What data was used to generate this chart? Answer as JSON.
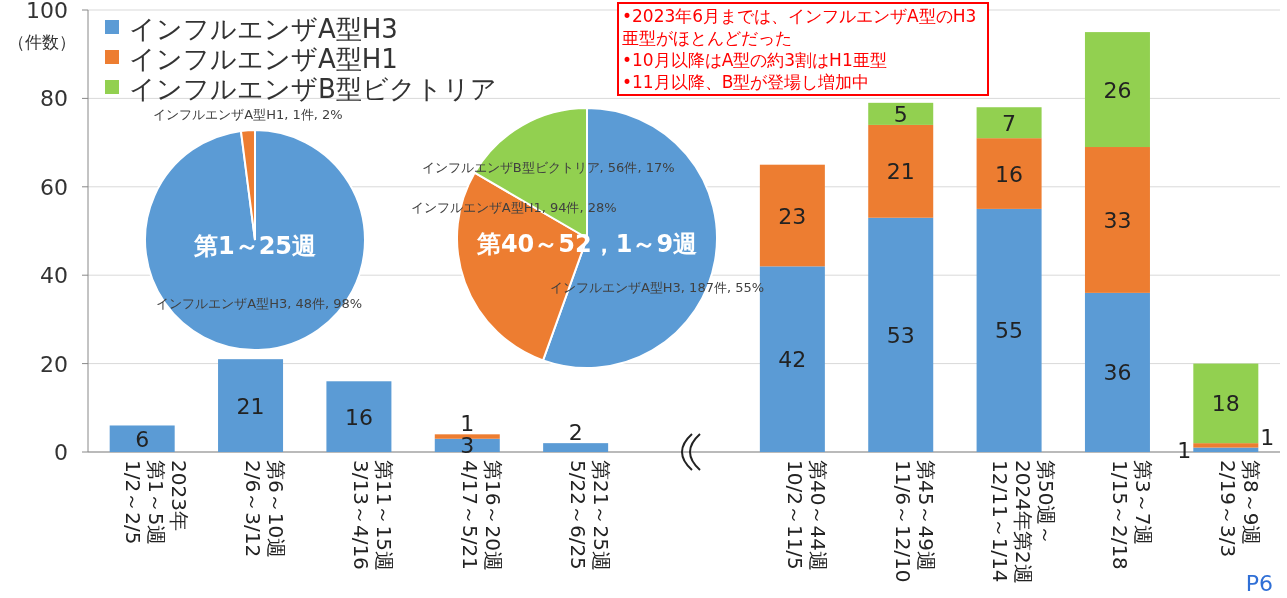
{
  "chart_data": [
    {
      "type": "bar",
      "stacked": true,
      "ylabel": "（件数）",
      "ylim": [
        0,
        100
      ],
      "yticks": [
        0,
        20,
        40,
        60,
        80,
        100
      ],
      "grid": "y",
      "legend": "top left",
      "data_labels": true,
      "categories": [
        "第1～5週\n1/2～2/5",
        "第6～10週\n2/6～3/12",
        "第11～15週\n3/13～4/16",
        "第16～20週\n4/17～5/21",
        "第21～25週\n5/22～6/25",
        null,
        "第40～44週\n10/2～11/5",
        "第45～49週\n11/6～12/10",
        "第50週～\n2024年第2週\n12/11～1/14",
        "第3～7週\n1/15～2/18",
        "第8～9週\n2/19～3/3"
      ],
      "series": [
        {
          "name": "インフルエンザA型H3",
          "color": "#5b9bd5",
          "values": [
            6,
            21,
            16,
            3,
            2,
            null,
            42,
            53,
            55,
            36,
            1
          ]
        },
        {
          "name": "インフルエンザA型H1",
          "color": "#ed7d31",
          "values": [
            null,
            null,
            null,
            1,
            null,
            null,
            23,
            21,
            16,
            33,
            1
          ]
        },
        {
          "name": "インフルエンザB型ビクトリア",
          "color": "#92d050",
          "values": [
            null,
            null,
            null,
            null,
            null,
            null,
            null,
            5,
            7,
            26,
            18
          ]
        }
      ],
      "annotations": [
        "2023年",
        "•2023年6月までは、インフルエンザA型のH3亜型がほとんどだった",
        "•10月以降はA型の約3割はH1亜型",
        "•11月以降、B型が登場し増加中",
        "P6"
      ]
    },
    {
      "type": "pie",
      "title": "第1～25週",
      "categories": [
        "インフルエンザA型H3",
        "インフルエンザA型H1"
      ],
      "values": [
        48,
        1
      ],
      "colors": [
        "#5b9bd5",
        "#ed7d31"
      ],
      "value_labels": [
        "48件, 98%",
        "1件, 2%"
      ]
    },
    {
      "type": "pie",
      "title": "第40～52，1～9週",
      "categories": [
        "インフルエンザA型H3",
        "インフルエンザA型H1",
        "インフルエンザB型ビクトリア"
      ],
      "values": [
        187,
        94,
        56
      ],
      "colors": [
        "#5b9bd5",
        "#ed7d31",
        "#92d050"
      ],
      "value_labels": [
        "187件, 55%",
        "94件, 28%",
        "56件, 17%"
      ]
    }
  ]
}
